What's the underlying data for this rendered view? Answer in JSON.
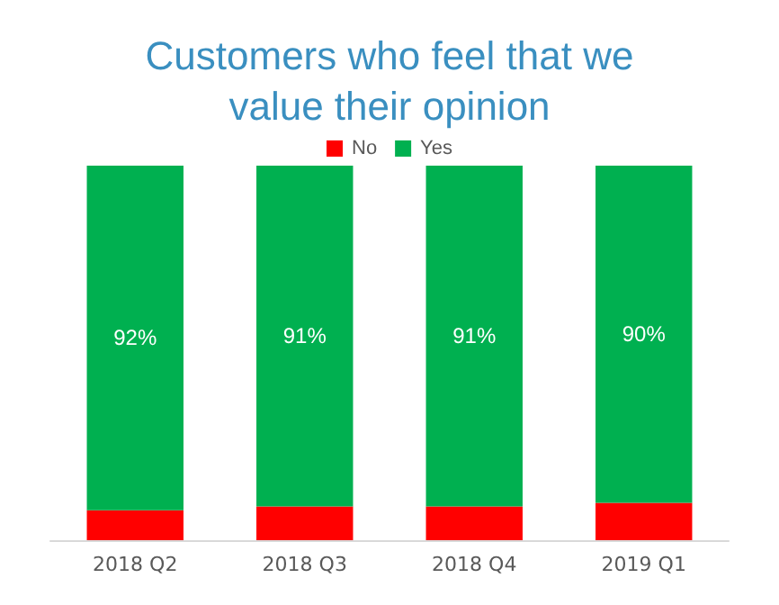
{
  "chart_data": {
    "type": "bar",
    "title": "Customers who feel that we\nvalue their opinion",
    "categories": [
      "2018 Q2",
      "2018 Q3",
      "2018 Q4",
      "2019 Q1"
    ],
    "stacked": true,
    "legend": "top",
    "ylim": [
      0,
      100
    ],
    "series": [
      {
        "name": "No",
        "color": "#ff0000",
        "values": [
          8,
          9,
          9,
          10
        ]
      },
      {
        "name": "Yes",
        "color": "#00b050",
        "values": [
          92,
          91,
          91,
          90
        ],
        "value_labels": [
          "92%",
          "91%",
          "91%",
          "90%"
        ]
      }
    ]
  }
}
